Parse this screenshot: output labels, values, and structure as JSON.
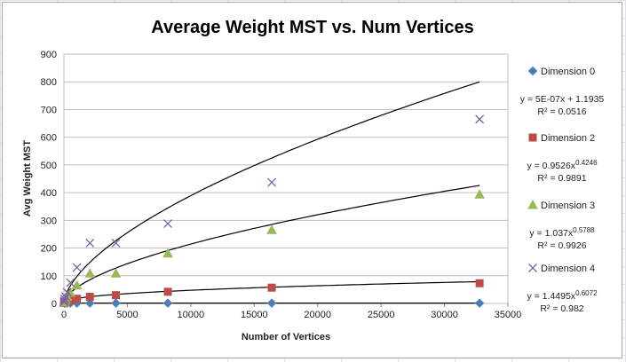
{
  "chart_data": {
    "type": "scatter",
    "title": "Average Weight MST vs. Num Vertices",
    "xlabel": "Number of Vertices",
    "ylabel": "Avg Weight MST",
    "xlim": [
      0,
      35000
    ],
    "ylim": [
      0,
      900
    ],
    "x_ticks": [
      "0",
      "5000",
      "10000",
      "15000",
      "20000",
      "25000",
      "30000",
      "35000"
    ],
    "y_ticks": [
      "0",
      "100",
      "200",
      "300",
      "400",
      "500",
      "600",
      "700",
      "800",
      "900"
    ],
    "grid": "horizontal",
    "legend_position": "right",
    "series": [
      {
        "name": "Dimension 0",
        "marker": "diamond",
        "color": "#4a7ebb",
        "points": [
          [
            16,
            1.2
          ],
          [
            32,
            1.2
          ],
          [
            64,
            1.2
          ],
          [
            128,
            1.2
          ],
          [
            256,
            1.2
          ],
          [
            512,
            1.2
          ],
          [
            1024,
            1.2
          ],
          [
            2048,
            1.2
          ],
          [
            4096,
            1.2
          ],
          [
            8192,
            1.2
          ],
          [
            16384,
            1.2
          ],
          [
            32768,
            1.2
          ]
        ],
        "trendline": {
          "type": "linear",
          "a": 5e-07,
          "b": 1.1935
        },
        "equation": [
          "y = 5E-07x + 1.1935",
          "R² = 0.0516"
        ]
      },
      {
        "name": "Dimension 2",
        "marker": "square",
        "color": "#be4b48",
        "points": [
          [
            16,
            2
          ],
          [
            32,
            3
          ],
          [
            64,
            4
          ],
          [
            128,
            6
          ],
          [
            256,
            8
          ],
          [
            512,
            11
          ],
          [
            1024,
            17
          ],
          [
            2048,
            24
          ],
          [
            4096,
            30
          ],
          [
            8192,
            42
          ],
          [
            16384,
            57
          ],
          [
            32768,
            73
          ]
        ],
        "trendline": {
          "type": "power",
          "a": 0.9526,
          "b": 0.4246
        },
        "equation": [
          "y = 0.9526x^0.4246",
          "R² = 0.9891"
        ]
      },
      {
        "name": "Dimension 3",
        "marker": "triangle",
        "color": "#98b954",
        "points": [
          [
            16,
            3
          ],
          [
            32,
            6
          ],
          [
            64,
            9
          ],
          [
            128,
            14
          ],
          [
            256,
            24
          ],
          [
            512,
            38
          ],
          [
            1024,
            65
          ],
          [
            2048,
            108
          ],
          [
            4096,
            108
          ],
          [
            8192,
            180
          ],
          [
            16384,
            265
          ],
          [
            32768,
            393
          ]
        ],
        "trendline": {
          "type": "power",
          "a": 1.037,
          "b": 0.5788
        },
        "equation": [
          "y = 1.037x^0.5788",
          "R² = 0.9926"
        ]
      },
      {
        "name": "Dimension 4",
        "marker": "x",
        "color": "#7d60a0",
        "points": [
          [
            16,
            5
          ],
          [
            32,
            9
          ],
          [
            64,
            16
          ],
          [
            128,
            25
          ],
          [
            256,
            40
          ],
          [
            512,
            75
          ],
          [
            1024,
            130
          ],
          [
            2048,
            218
          ],
          [
            4096,
            218
          ],
          [
            8192,
            288
          ],
          [
            16384,
            437
          ],
          [
            32768,
            665
          ]
        ],
        "trendline": {
          "type": "power",
          "a": 1.4495,
          "b": 0.6072
        },
        "equation": [
          "y = 1.4495x^0.6072",
          "R² = 0.982"
        ]
      }
    ]
  }
}
